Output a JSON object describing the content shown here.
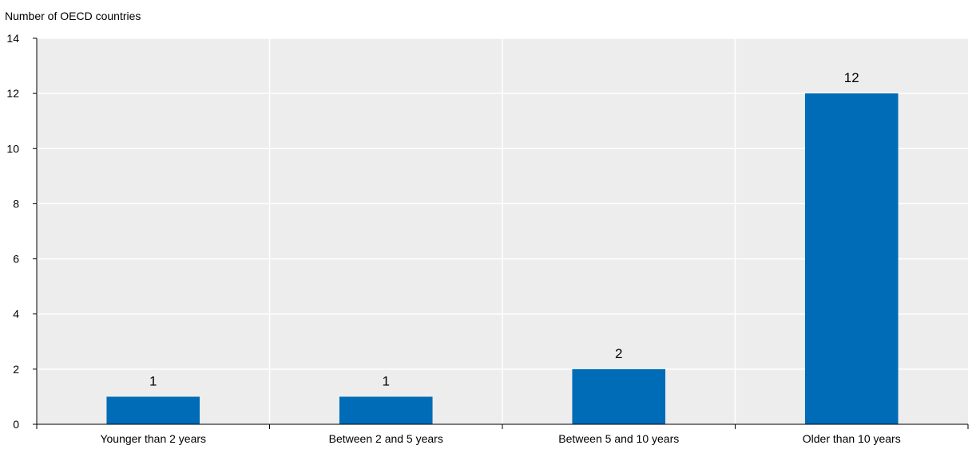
{
  "chart_data": {
    "type": "bar",
    "title": "",
    "ylabel": "Number of OECD countries",
    "xlabel": "",
    "categories": [
      "Younger than 2 years",
      "Between 2 and 5 years",
      "Between 5 and 10 years",
      "Older than 10 years"
    ],
    "series": [
      {
        "values": [
          1,
          1,
          2,
          12
        ],
        "color": "#006BB6"
      }
    ],
    "data_labels": [
      "1",
      "1",
      "2",
      "12"
    ],
    "ylim": [
      0,
      14
    ],
    "yticks": [
      0,
      2,
      4,
      6,
      8,
      10,
      12,
      14
    ],
    "grid": true,
    "colors": {
      "bar": "#006BB6",
      "plot_background": "#EDEDED",
      "gridline": "#FFFFFF",
      "axis": "#000000",
      "text": "#000000"
    }
  }
}
